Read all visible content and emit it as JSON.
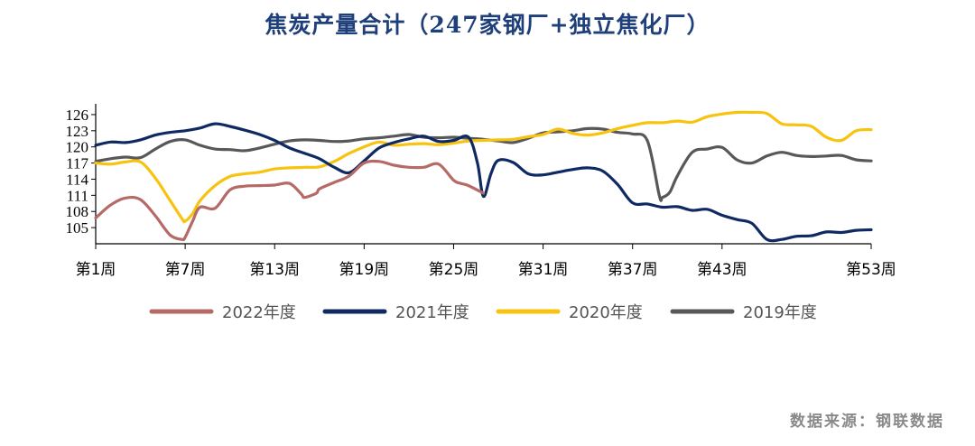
{
  "chart_data": {
    "type": "line",
    "title": "焦炭产量合计（247家钢厂+独立焦化厂）",
    "xlabel": "",
    "ylabel": "",
    "xlim": [
      1,
      53
    ],
    "ylim": [
      102,
      128
    ],
    "yticks": [
      105,
      108,
      111,
      114,
      117,
      120,
      123,
      126
    ],
    "xtick_labels": [
      {
        "x": 1,
        "label": "第1周"
      },
      {
        "x": 7,
        "label": "第7周"
      },
      {
        "x": 13,
        "label": "第13周"
      },
      {
        "x": 19,
        "label": "第19周"
      },
      {
        "x": 25,
        "label": "第25周"
      },
      {
        "x": 31,
        "label": "第31周"
      },
      {
        "x": 37,
        "label": "第37周"
      },
      {
        "x": 43,
        "label": "第43周"
      },
      {
        "x": 53,
        "label": "第53周"
      }
    ],
    "grid": false,
    "legend_position": "bottom",
    "series": [
      {
        "name": "2022年度",
        "color": "#b56a66",
        "x": [
          1,
          2,
          3,
          4,
          5,
          6,
          6.8,
          7,
          7.5,
          8,
          9,
          10,
          11,
          12,
          13,
          14,
          14.8,
          15,
          15.8,
          16,
          17,
          18,
          19,
          20,
          21,
          22,
          23,
          24,
          25,
          25.5,
          26,
          27
        ],
        "y": [
          106.8,
          109.2,
          110.5,
          110.2,
          107.2,
          103.6,
          102.8,
          103.2,
          106.2,
          108.8,
          108.6,
          112.0,
          112.7,
          112.8,
          112.9,
          113.2,
          111.2,
          110.6,
          111.4,
          112.2,
          113.4,
          114.6,
          117.0,
          117.3,
          116.6,
          116.2,
          116.2,
          116.8,
          113.8,
          113.2,
          112.8,
          111.4
        ]
      },
      {
        "name": "2021年度",
        "color": "#0f2a63",
        "x": [
          1,
          2,
          3,
          4,
          5,
          6,
          7,
          8,
          9,
          10,
          11,
          12,
          13,
          14,
          15,
          16,
          17,
          18,
          19,
          20,
          21,
          22,
          23,
          24,
          25,
          26,
          26.6,
          27,
          27.5,
          28,
          29,
          30,
          31,
          32,
          33,
          34,
          35,
          36,
          37,
          38,
          39,
          40,
          41,
          42,
          43,
          44,
          45,
          46,
          47,
          48,
          49,
          50,
          51,
          52,
          53
        ],
        "y": [
          120.3,
          120.9,
          120.8,
          121.3,
          122.2,
          122.7,
          123.0,
          123.5,
          124.3,
          123.8,
          123.1,
          122.3,
          121.2,
          119.8,
          118.8,
          117.8,
          116.2,
          115.2,
          117.4,
          119.8,
          120.8,
          121.5,
          122.0,
          121.0,
          121.2,
          121.8,
          117.0,
          110.8,
          115.0,
          117.5,
          117.1,
          115.0,
          114.8,
          115.3,
          115.8,
          116.1,
          115.5,
          113.0,
          109.6,
          109.4,
          108.8,
          108.9,
          108.2,
          108.4,
          107.3,
          106.5,
          105.8,
          102.8,
          102.8,
          103.4,
          103.5,
          104.2,
          104.1,
          104.5,
          104.6
        ]
      },
      {
        "name": "2020年度",
        "color": "#f7c30f",
        "x": [
          1,
          2,
          3,
          4,
          5,
          6,
          6.8,
          7,
          7.5,
          8,
          9,
          10,
          11,
          12,
          13,
          14,
          15,
          16,
          17,
          18,
          19,
          20,
          21,
          22,
          23,
          24,
          25,
          26,
          27,
          28,
          29,
          30,
          31,
          32,
          33,
          34,
          35,
          36,
          37,
          38,
          39,
          40,
          41,
          42,
          43,
          44,
          45,
          46,
          47,
          48,
          49,
          50,
          51,
          52,
          53
        ],
        "y": [
          117.0,
          116.8,
          117.2,
          117.2,
          114.2,
          110.0,
          106.6,
          106.2,
          107.6,
          110.0,
          112.8,
          114.5,
          115.0,
          115.3,
          115.9,
          116.1,
          116.2,
          116.3,
          117.3,
          118.8,
          120.0,
          120.9,
          120.3,
          120.5,
          120.6,
          120.4,
          120.7,
          121.1,
          121.2,
          121.3,
          121.4,
          121.9,
          122.3,
          123.3,
          122.5,
          122.2,
          122.6,
          123.4,
          124.0,
          124.5,
          124.5,
          124.8,
          124.6,
          125.6,
          126.1,
          126.4,
          126.4,
          126.2,
          124.3,
          124.1,
          123.8,
          121.8,
          121.2,
          123.0,
          123.2
        ]
      },
      {
        "name": "2019年度",
        "color": "#58585a",
        "x": [
          1,
          2,
          3,
          4,
          5,
          6,
          7,
          8,
          9,
          10,
          11,
          12,
          13,
          14,
          15,
          16,
          17,
          18,
          19,
          20,
          21,
          22,
          23,
          24,
          25,
          26,
          27,
          28,
          29,
          30,
          31,
          32,
          33,
          34,
          35,
          36,
          37,
          38,
          38.8,
          39,
          39.5,
          40,
          41,
          42,
          43,
          44,
          45,
          46,
          47,
          48,
          49,
          50,
          51,
          52,
          53
        ],
        "y": [
          117.3,
          117.8,
          118.1,
          118.0,
          119.6,
          121.0,
          121.3,
          120.3,
          119.6,
          119.5,
          119.3,
          119.8,
          120.5,
          121.1,
          121.3,
          121.2,
          121.0,
          121.1,
          121.5,
          121.7,
          122.0,
          122.3,
          121.8,
          121.7,
          121.8,
          121.6,
          121.4,
          121.1,
          120.8,
          121.6,
          122.6,
          122.8,
          123.0,
          123.4,
          123.3,
          122.7,
          122.4,
          121.1,
          110.9,
          110.6,
          111.6,
          114.6,
          119.0,
          119.6,
          119.9,
          117.6,
          117.0,
          118.3,
          119.0,
          118.4,
          118.2,
          118.3,
          118.4,
          117.6,
          117.4
        ]
      }
    ]
  },
  "source": "数据来源：钢联数据"
}
